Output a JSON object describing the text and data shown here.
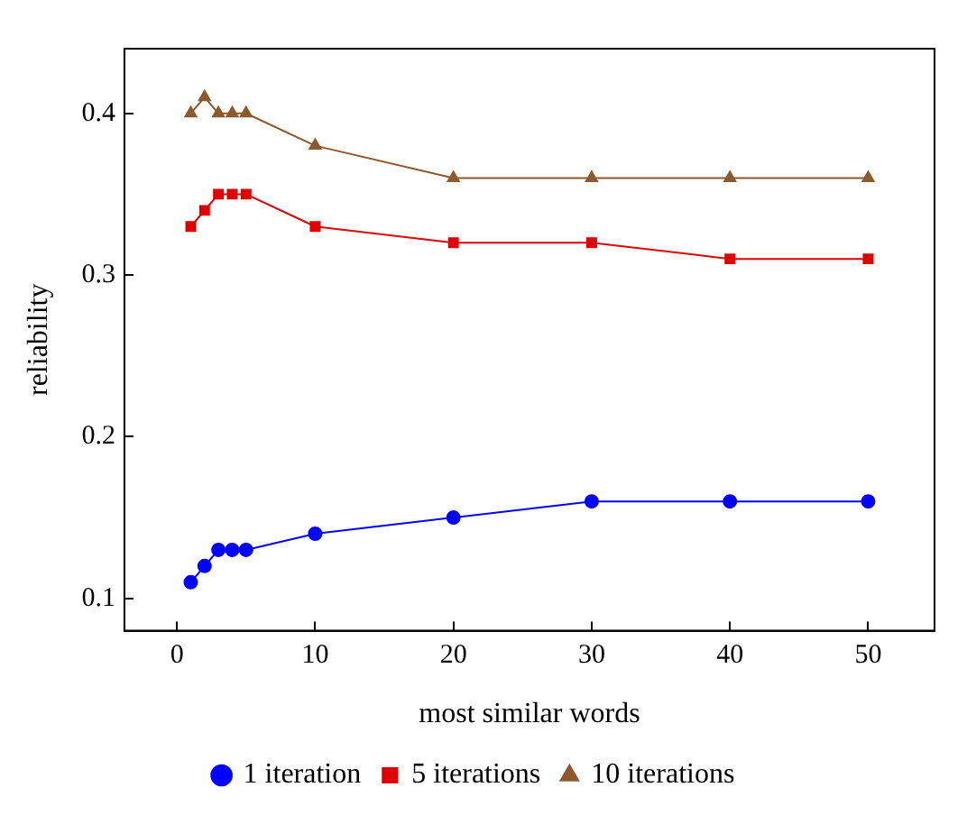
{
  "chart_data": {
    "type": "line",
    "xlabel": "most similar words",
    "ylabel": "reliability",
    "x": [
      1,
      2,
      3,
      4,
      5,
      10,
      20,
      30,
      40,
      50
    ],
    "series": [
      {
        "name": "1 iteration",
        "color": "#0000ff",
        "marker": "circle",
        "values": [
          0.11,
          0.12,
          0.13,
          0.13,
          0.13,
          0.14,
          0.15,
          0.16,
          0.16,
          0.16
        ]
      },
      {
        "name": "5 iterations",
        "color": "#e00000",
        "marker": "square",
        "values": [
          0.33,
          0.34,
          0.35,
          0.35,
          0.35,
          0.33,
          0.32,
          0.32,
          0.31,
          0.31
        ]
      },
      {
        "name": "10 iterations",
        "color": "#8c5a2e",
        "marker": "triangle",
        "values": [
          0.4,
          0.41,
          0.4,
          0.4,
          0.4,
          0.38,
          0.36,
          0.36,
          0.36,
          0.36
        ]
      }
    ],
    "xlim": [
      -3.8,
      54.8
    ],
    "ylim": [
      0.08,
      0.44
    ],
    "xticks": [
      0,
      10,
      20,
      30,
      40,
      50
    ],
    "yticks": [
      0.1,
      0.2,
      0.3,
      0.4
    ],
    "grid": false,
    "legend": "bottom"
  }
}
